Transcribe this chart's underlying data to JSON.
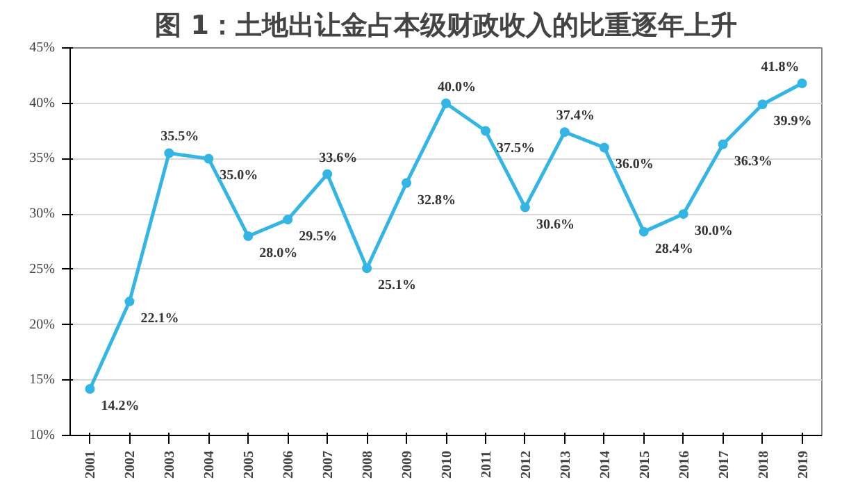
{
  "chart_data": {
    "type": "line",
    "title": "图 1：土地出让金占本级财政收入的比重逐年上升",
    "categories": [
      "2001",
      "2002",
      "2003",
      "2004",
      "2005",
      "2006",
      "2007",
      "2008",
      "2009",
      "2010",
      "2011",
      "2012",
      "2013",
      "2014",
      "2015",
      "2016",
      "2017",
      "2018",
      "2019"
    ],
    "series": [
      {
        "color": "#33b5e5",
        "values": [
          14.2,
          22.1,
          35.5,
          35.0,
          28.0,
          29.5,
          33.6,
          25.1,
          32.8,
          40.0,
          37.5,
          30.6,
          37.4,
          36.0,
          28.4,
          30.0,
          36.3,
          39.9,
          41.8
        ],
        "value_labels": [
          "14.2%",
          "22.1%",
          "35.5%",
          "35.0%",
          "28.0%",
          "29.5%",
          "33.6%",
          "25.1%",
          "32.8%",
          "40.0%",
          "37.5%",
          "30.6%",
          "37.4%",
          "36.0%",
          "28.4%",
          "30.0%",
          "36.3%",
          "39.9%",
          "41.8%"
        ]
      }
    ],
    "ylim": [
      10,
      45
    ],
    "yticks": [
      {
        "value": 10,
        "label": "10%"
      },
      {
        "value": 15,
        "label": "15%"
      },
      {
        "value": 20,
        "label": "20%"
      },
      {
        "value": 25,
        "label": "25%"
      },
      {
        "value": 30,
        "label": "30%"
      },
      {
        "value": 35,
        "label": "35%"
      },
      {
        "value": 40,
        "label": "40%"
      },
      {
        "value": 45,
        "label": "45%"
      }
    ],
    "grid": "y",
    "marker": "circle",
    "line_style": "solid"
  }
}
